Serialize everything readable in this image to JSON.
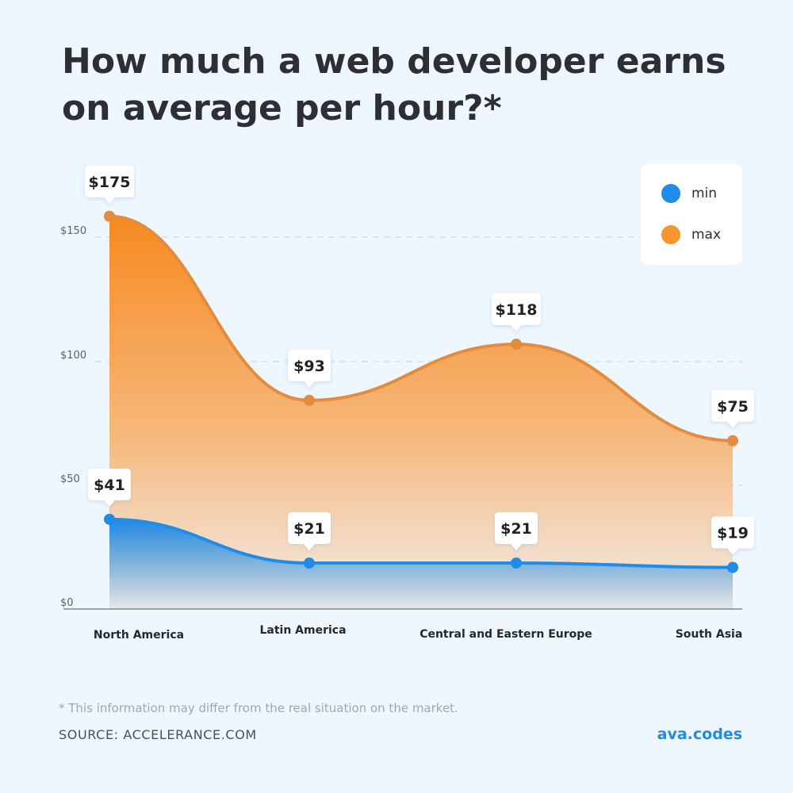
{
  "title": "How much a web developer earns on average per hour?*",
  "legend": [
    {
      "label": "min",
      "color": "#1f8ce9"
    },
    {
      "label": "max",
      "color": "#f79530"
    }
  ],
  "footnote": "* This information may differ from the real situation on the market.",
  "source": "SOURCE: ACCELERANCE.COM",
  "brand": "ava.codes",
  "chart_data": {
    "type": "area",
    "categories": [
      "North America",
      "Latin America",
      "Central and Eastern Europe",
      "South Asia"
    ],
    "series": [
      {
        "name": "min",
        "values": [
          41,
          21,
          21,
          19
        ],
        "labels": [
          "$41",
          "$21",
          "$21",
          "$19"
        ],
        "color": "#1f8ce9"
      },
      {
        "name": "max",
        "values": [
          175,
          93,
          118,
          75
        ],
        "labels": [
          "$175",
          "$93",
          "$118",
          "$75"
        ],
        "color": "#f79530"
      }
    ],
    "y_ticks": [
      "$0",
      "$50",
      "$100",
      "$150"
    ],
    "xlabel": "",
    "ylabel": "",
    "grid": true,
    "legend_position": "top-right"
  }
}
